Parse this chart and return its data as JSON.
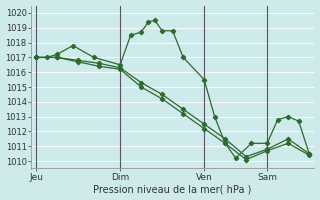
{
  "bg_color": "#ceeaea",
  "grid_color": "#ffffff",
  "line_color": "#2d6a2d",
  "marker_color": "#2d6a2d",
  "vline_color": "#555566",
  "xlabel": "Pression niveau de la mer( hPa )",
  "ylim": [
    1009.5,
    1020.5
  ],
  "yticks": [
    1010,
    1011,
    1012,
    1013,
    1014,
    1015,
    1016,
    1017,
    1018,
    1019,
    1020
  ],
  "xlim": [
    0,
    27
  ],
  "day_labels": [
    "Jeu",
    "Dim",
    "Ven",
    "Sam"
  ],
  "day_positions": [
    0.5,
    8.5,
    16.5,
    22.5
  ],
  "vline_positions": [
    0.5,
    8.5,
    16.5,
    22.5
  ],
  "series1_x": [
    0.5,
    1.5,
    2.5,
    4.0,
    6.0,
    8.5,
    9.5,
    10.5,
    11.2,
    11.8,
    12.5,
    13.5,
    14.5,
    16.5,
    17.5,
    18.5,
    19.5,
    21.0,
    22.5,
    23.5,
    24.5,
    25.5,
    26.5
  ],
  "series1_y": [
    1017.0,
    1017.0,
    1017.2,
    1017.8,
    1017.0,
    1016.5,
    1018.5,
    1018.7,
    1019.4,
    1019.5,
    1018.8,
    1018.8,
    1017.0,
    1015.5,
    1013.0,
    1011.2,
    1010.2,
    1011.2,
    1011.2,
    1012.8,
    1013.0,
    1012.7,
    1010.5
  ],
  "series2_x": [
    0.5,
    2.5,
    4.5,
    6.5,
    8.5,
    10.5,
    12.5,
    14.5,
    16.5,
    18.5,
    20.5,
    22.5,
    24.5,
    26.5
  ],
  "series2_y": [
    1017.0,
    1017.0,
    1016.8,
    1016.6,
    1016.3,
    1015.3,
    1014.5,
    1013.5,
    1012.5,
    1011.5,
    1010.3,
    1010.8,
    1011.5,
    1010.5
  ],
  "series3_x": [
    0.5,
    2.5,
    4.5,
    6.5,
    8.5,
    10.5,
    12.5,
    14.5,
    16.5,
    18.5,
    20.5,
    22.5,
    24.5,
    26.5
  ],
  "series3_y": [
    1017.0,
    1017.0,
    1016.7,
    1016.4,
    1016.2,
    1015.0,
    1014.2,
    1013.2,
    1012.2,
    1011.2,
    1010.1,
    1010.7,
    1011.2,
    1010.4
  ]
}
